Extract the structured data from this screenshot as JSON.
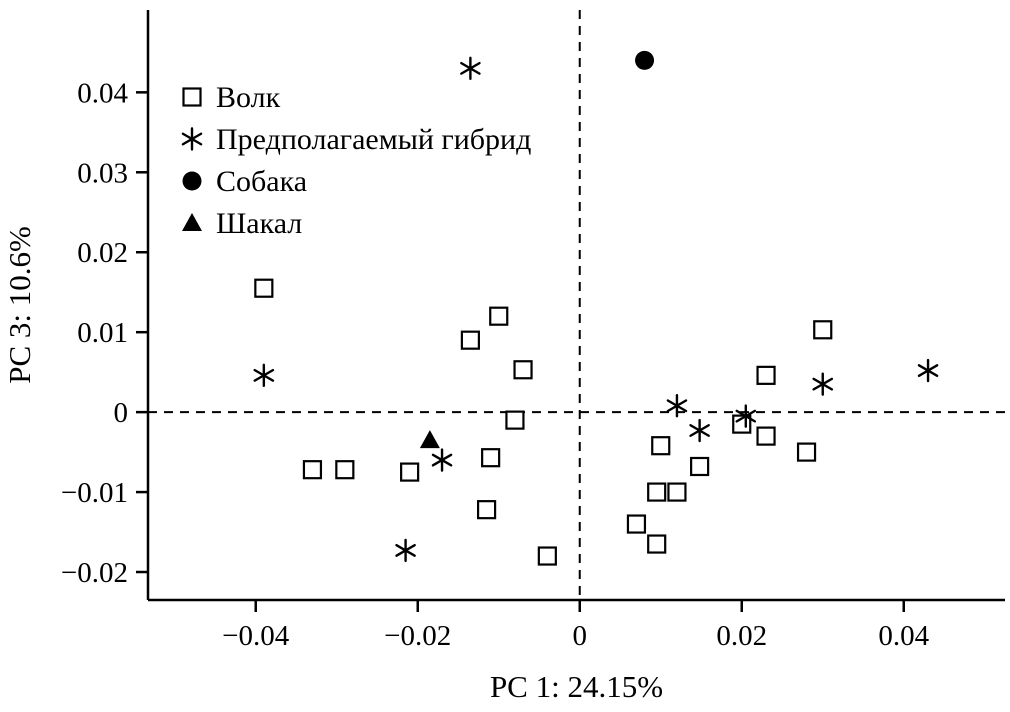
{
  "figure": {
    "background": "#ffffff"
  },
  "colors": {
    "ink": "#000000",
    "background": "#ffffff"
  },
  "chart_data": {
    "type": "scatter",
    "title": "",
    "xlabel": "PC 1: 24.15%",
    "ylabel": "PC 3: 10.6%",
    "xlim": [
      -0.0533,
      0.0525
    ],
    "ylim": [
      -0.0235,
      0.0503
    ],
    "grid": false,
    "legend_position": "top-left-inside",
    "x_ticks": [
      -0.04,
      -0.02,
      0,
      0.02,
      0.04
    ],
    "x_tick_labels": [
      "−0.04",
      "−0.02",
      "0",
      "0.02",
      "0.04"
    ],
    "y_ticks": [
      -0.02,
      -0.01,
      0,
      0.01,
      0.02,
      0.03,
      0.04
    ],
    "y_tick_labels": [
      "−0.02",
      "−0.01",
      "0",
      "0.01",
      "0.02",
      "0.03",
      "0.04"
    ],
    "reference_lines": [
      {
        "axis": "vertical",
        "value": 0,
        "style": "dashed"
      },
      {
        "axis": "horizontal",
        "value": 0,
        "style": "dashed"
      }
    ],
    "series": [
      {
        "key": "wolf",
        "name": "Волк",
        "marker": "open-square",
        "points": [
          [
            -0.039,
            0.0155
          ],
          [
            -0.0135,
            0.009
          ],
          [
            -0.01,
            0.012
          ],
          [
            -0.007,
            0.0053
          ],
          [
            -0.008,
            -0.001
          ],
          [
            0.03,
            0.0103
          ],
          [
            0.023,
            0.0046
          ],
          [
            0.02,
            -0.0015
          ],
          [
            0.023,
            -0.003
          ],
          [
            0.028,
            -0.005
          ],
          [
            0.0148,
            -0.0068
          ],
          [
            0.01,
            -0.0042
          ],
          [
            0.0095,
            -0.01
          ],
          [
            0.012,
            -0.01
          ],
          [
            0.007,
            -0.014
          ],
          [
            0.0095,
            -0.0165
          ],
          [
            -0.033,
            -0.0072
          ],
          [
            -0.029,
            -0.0072
          ],
          [
            -0.021,
            -0.0075
          ],
          [
            -0.011,
            -0.0057
          ],
          [
            -0.0115,
            -0.0122
          ],
          [
            -0.004,
            -0.018
          ]
        ]
      },
      {
        "key": "hybrid",
        "name": "Предполагаемый гибрид",
        "marker": "asterisk",
        "points": [
          [
            -0.0135,
            0.043
          ],
          [
            -0.039,
            0.0046
          ],
          [
            0.043,
            0.0052
          ],
          [
            0.03,
            0.0035
          ],
          [
            0.012,
            0.0008
          ],
          [
            0.0205,
            -0.0005
          ],
          [
            0.0148,
            -0.0023
          ],
          [
            -0.017,
            -0.006
          ],
          [
            -0.0215,
            -0.0173
          ]
        ]
      },
      {
        "key": "dog",
        "name": "Собака",
        "marker": "filled-circle",
        "points": [
          [
            0.008,
            0.044
          ]
        ]
      },
      {
        "key": "jackal",
        "name": "Шакал",
        "marker": "filled-triangle",
        "points": [
          [
            -0.0185,
            -0.0035
          ]
        ]
      }
    ]
  }
}
